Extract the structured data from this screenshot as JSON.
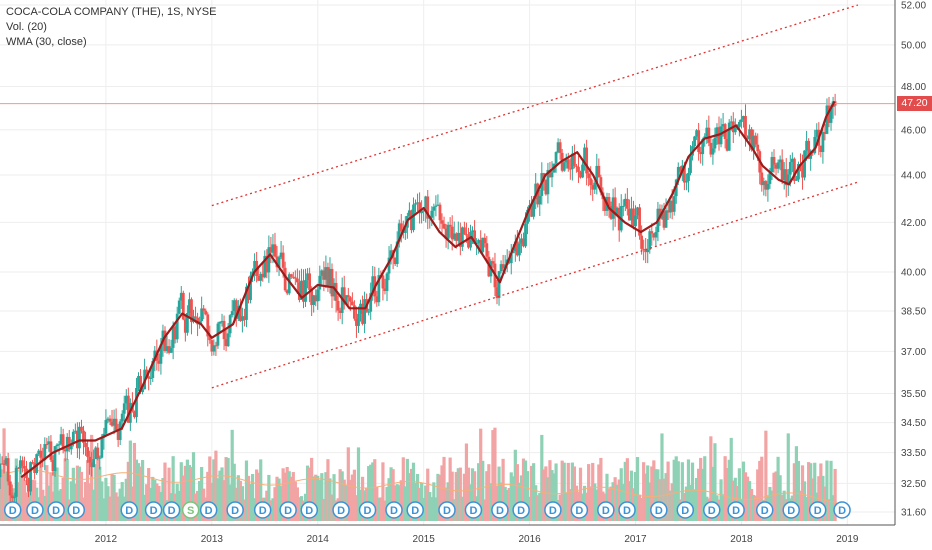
{
  "legend": {
    "title": "COCA-COLA COMPANY (THE), 1S, NYSE",
    "volume": "Vol. (20)",
    "wma": "WMA (30, close)"
  },
  "current_price": "47.20",
  "colors": {
    "up": "#26a69a",
    "down": "#ef5350",
    "wma": "#9c1b1b",
    "channel": "#e03333",
    "price_line": "#f19a8a",
    "volume_up": "#8fd1b5",
    "volume_down": "#f2a3a3",
    "volume_ma": "#f4b07a",
    "dividend_marker": "#3b93d6",
    "split_marker": "#7cc47c"
  },
  "chart_data": {
    "type": "candlestick",
    "x_axis": {
      "ticks": [
        "2012",
        "2013",
        "2014",
        "2015",
        "2016",
        "2017",
        "2018",
        "2019"
      ]
    },
    "y_axis": {
      "scale": "log",
      "ticks": [
        "52.00",
        "50.00",
        "48.00",
        "46.00",
        "44.00",
        "42.00",
        "40.00",
        "38.50",
        "37.00",
        "35.50",
        "34.50",
        "33.50",
        "32.50",
        "31.60"
      ],
      "range": [
        31.6,
        52.0
      ]
    },
    "wma_30": [
      [
        2011.2,
        32.7
      ],
      [
        2011.5,
        33.5
      ],
      [
        2011.75,
        33.9
      ],
      [
        2011.9,
        33.9
      ],
      [
        2012.15,
        34.3
      ],
      [
        2012.35,
        35.8
      ],
      [
        2012.55,
        37.5
      ],
      [
        2012.72,
        38.4
      ],
      [
        2012.9,
        38.0
      ],
      [
        2013.0,
        37.5
      ],
      [
        2013.2,
        38.0
      ],
      [
        2013.4,
        40.0
      ],
      [
        2013.55,
        40.7
      ],
      [
        2013.7,
        39.8
      ],
      [
        2013.85,
        39.0
      ],
      [
        2014.0,
        39.5
      ],
      [
        2014.15,
        39.4
      ],
      [
        2014.3,
        38.6
      ],
      [
        2014.45,
        38.6
      ],
      [
        2014.55,
        39.5
      ],
      [
        2014.7,
        40.6
      ],
      [
        2014.85,
        42.1
      ],
      [
        2015.0,
        42.6
      ],
      [
        2015.15,
        41.6
      ],
      [
        2015.3,
        41.0
      ],
      [
        2015.45,
        41.4
      ],
      [
        2015.6,
        40.4
      ],
      [
        2015.72,
        39.6
      ],
      [
        2015.85,
        41.0
      ],
      [
        2016.0,
        42.6
      ],
      [
        2016.15,
        44.0
      ],
      [
        2016.3,
        44.6
      ],
      [
        2016.45,
        45.0
      ],
      [
        2016.6,
        44.0
      ],
      [
        2016.75,
        42.6
      ],
      [
        2016.9,
        42.0
      ],
      [
        2017.05,
        41.6
      ],
      [
        2017.2,
        42.0
      ],
      [
        2017.35,
        43.2
      ],
      [
        2017.5,
        44.8
      ],
      [
        2017.65,
        45.6
      ],
      [
        2017.8,
        45.8
      ],
      [
        2017.95,
        46.2
      ],
      [
        2018.1,
        45.2
      ],
      [
        2018.2,
        44.4
      ],
      [
        2018.35,
        43.8
      ],
      [
        2018.45,
        43.6
      ],
      [
        2018.55,
        44.4
      ],
      [
        2018.7,
        45.2
      ],
      [
        2018.8,
        46.6
      ],
      [
        2018.88,
        47.3
      ]
    ],
    "channel_lines": [
      {
        "name": "upper",
        "points": [
          [
            2013.0,
            42.7
          ],
          [
            2019.1,
            52.0
          ]
        ]
      },
      {
        "name": "lower",
        "points": [
          [
            2013.0,
            35.7
          ],
          [
            2019.1,
            43.7
          ]
        ]
      }
    ],
    "current_price": 47.2,
    "markers": [
      {
        "label": "D",
        "x": 2011.12
      },
      {
        "label": "D",
        "x": 2011.33
      },
      {
        "label": "D",
        "x": 2011.53
      },
      {
        "label": "D",
        "x": 2011.72
      },
      {
        "label": "D",
        "x": 2012.22
      },
      {
        "label": "D",
        "x": 2012.45
      },
      {
        "label": "D",
        "x": 2012.62
      },
      {
        "label": "S",
        "x": 2012.8
      },
      {
        "label": "D",
        "x": 2012.97
      },
      {
        "label": "D",
        "x": 2013.22
      },
      {
        "label": "D",
        "x": 2013.48
      },
      {
        "label": "D",
        "x": 2013.72
      },
      {
        "label": "D",
        "x": 2013.92
      },
      {
        "label": "D",
        "x": 2014.22
      },
      {
        "label": "D",
        "x": 2014.47
      },
      {
        "label": "D",
        "x": 2014.72
      },
      {
        "label": "D",
        "x": 2014.92
      },
      {
        "label": "D",
        "x": 2015.22
      },
      {
        "label": "D",
        "x": 2015.47
      },
      {
        "label": "D",
        "x": 2015.72
      },
      {
        "label": "D",
        "x": 2015.92
      },
      {
        "label": "D",
        "x": 2016.22
      },
      {
        "label": "D",
        "x": 2016.47
      },
      {
        "label": "D",
        "x": 2016.72
      },
      {
        "label": "D",
        "x": 2016.92
      },
      {
        "label": "D",
        "x": 2017.22
      },
      {
        "label": "D",
        "x": 2017.47
      },
      {
        "label": "D",
        "x": 2017.72
      },
      {
        "label": "D",
        "x": 2017.95
      },
      {
        "label": "D",
        "x": 2018.22
      },
      {
        "label": "D",
        "x": 2018.47
      },
      {
        "label": "D",
        "x": 2018.72
      },
      {
        "label": "D",
        "x": 2018.95
      }
    ]
  }
}
